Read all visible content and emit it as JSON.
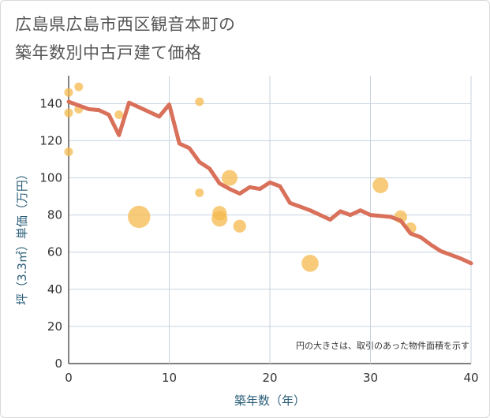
{
  "title": {
    "line1": "広島県広島市西区観音本町の",
    "line2": "築年数別中古戸建て価格"
  },
  "note": "円の大きさは、取引のあった物件面積を示す",
  "colors": {
    "line": "#d9705a",
    "bubble": "#f5b94e",
    "grid": "#c8d3de",
    "axis": "#333333"
  },
  "chart_data": {
    "type": "line",
    "xlabel": "築年数（年）",
    "ylabel": "坪（3.3㎡）単価（万円）",
    "xlim": [
      0,
      40
    ],
    "ylim": [
      0,
      155
    ],
    "x_ticks": [
      0,
      10,
      20,
      30,
      40
    ],
    "y_ticks": [
      0,
      20,
      40,
      60,
      80,
      100,
      120,
      140
    ],
    "grid": true,
    "series": [
      {
        "type": "line",
        "points": [
          [
            0,
            141
          ],
          [
            1,
            139
          ],
          [
            2,
            137
          ],
          [
            3,
            136.5
          ],
          [
            4,
            134
          ],
          [
            5,
            123
          ],
          [
            6,
            140.5
          ],
          [
            7,
            138
          ],
          [
            8,
            135.5
          ],
          [
            9,
            133
          ],
          [
            10,
            139.5
          ],
          [
            11,
            118.5
          ],
          [
            12,
            116
          ],
          [
            13,
            108.5
          ],
          [
            14,
            105
          ],
          [
            15,
            97
          ],
          [
            16,
            94
          ],
          [
            17,
            91.5
          ],
          [
            18,
            95
          ],
          [
            19,
            94
          ],
          [
            20,
            97.5
          ],
          [
            21,
            95.5
          ],
          [
            22,
            86.5
          ],
          [
            23,
            84.5
          ],
          [
            24,
            82.5
          ],
          [
            25,
            80
          ],
          [
            26,
            77.5
          ],
          [
            27,
            82
          ],
          [
            28,
            80
          ],
          [
            29,
            82.5
          ],
          [
            30,
            80
          ],
          [
            31,
            79.5
          ],
          [
            32,
            79
          ],
          [
            33,
            77
          ],
          [
            34,
            70
          ],
          [
            35,
            68
          ],
          [
            36,
            64
          ],
          [
            37,
            60.5
          ],
          [
            38,
            58.5
          ],
          [
            39,
            56.5
          ],
          [
            40,
            54
          ]
        ]
      },
      {
        "type": "scatter",
        "points": [
          {
            "x": 0,
            "y": 146,
            "size": 1
          },
          {
            "x": 0,
            "y": 135,
            "size": 1
          },
          {
            "x": 0,
            "y": 114,
            "size": 1
          },
          {
            "x": 1,
            "y": 149,
            "size": 1
          },
          {
            "x": 1,
            "y": 137,
            "size": 1
          },
          {
            "x": 5,
            "y": 134,
            "size": 1
          },
          {
            "x": 7,
            "y": 79,
            "size": 6
          },
          {
            "x": 13,
            "y": 141,
            "size": 1
          },
          {
            "x": 13,
            "y": 92,
            "size": 1
          },
          {
            "x": 15,
            "y": 78,
            "size": 3
          },
          {
            "x": 15,
            "y": 81,
            "size": 2.5
          },
          {
            "x": 16,
            "y": 100,
            "size": 3
          },
          {
            "x": 17,
            "y": 74,
            "size": 2
          },
          {
            "x": 24,
            "y": 54,
            "size": 3.5
          },
          {
            "x": 31,
            "y": 96,
            "size": 3
          },
          {
            "x": 33,
            "y": 79,
            "size": 2
          },
          {
            "x": 34,
            "y": 73,
            "size": 1.5
          }
        ]
      }
    ]
  }
}
